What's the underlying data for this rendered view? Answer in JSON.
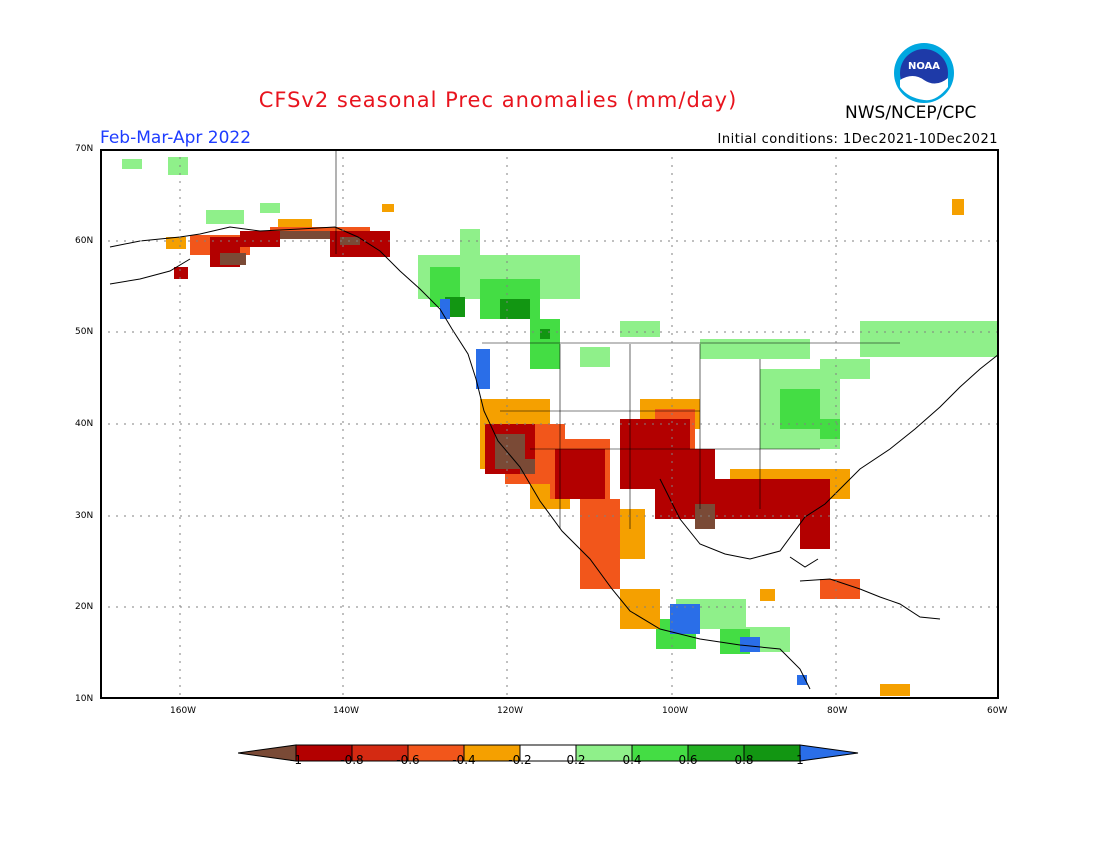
{
  "title": "CFSv2 seasonal Prec anomalies (mm/day)",
  "period": "Feb-Mar-Apr 2022",
  "initial_conditions": "Initial conditions: 1Dec2021-10Dec2021",
  "org": "NWS/NCEP/CPC",
  "logo_text": "NOAA",
  "lat_labels": [
    "70N",
    "60N",
    "50N",
    "40N",
    "30N",
    "20N",
    "10N"
  ],
  "lon_labels": [
    "160W",
    "140W",
    "120W",
    "100W",
    "80W",
    "60W"
  ],
  "colorbar": {
    "labels": [
      "-1",
      "-0.8",
      "-0.6",
      "-0.4",
      "-0.2",
      "0.2",
      "0.4",
      "0.6",
      "0.8",
      "1"
    ],
    "colors": [
      "#7a4a36",
      "#b30000",
      "#d42a12",
      "#f2561b",
      "#f5a000",
      "#ffffff",
      "#8ff08a",
      "#44dd44",
      "#22b022",
      "#129612",
      "#2a6ee8"
    ]
  }
}
